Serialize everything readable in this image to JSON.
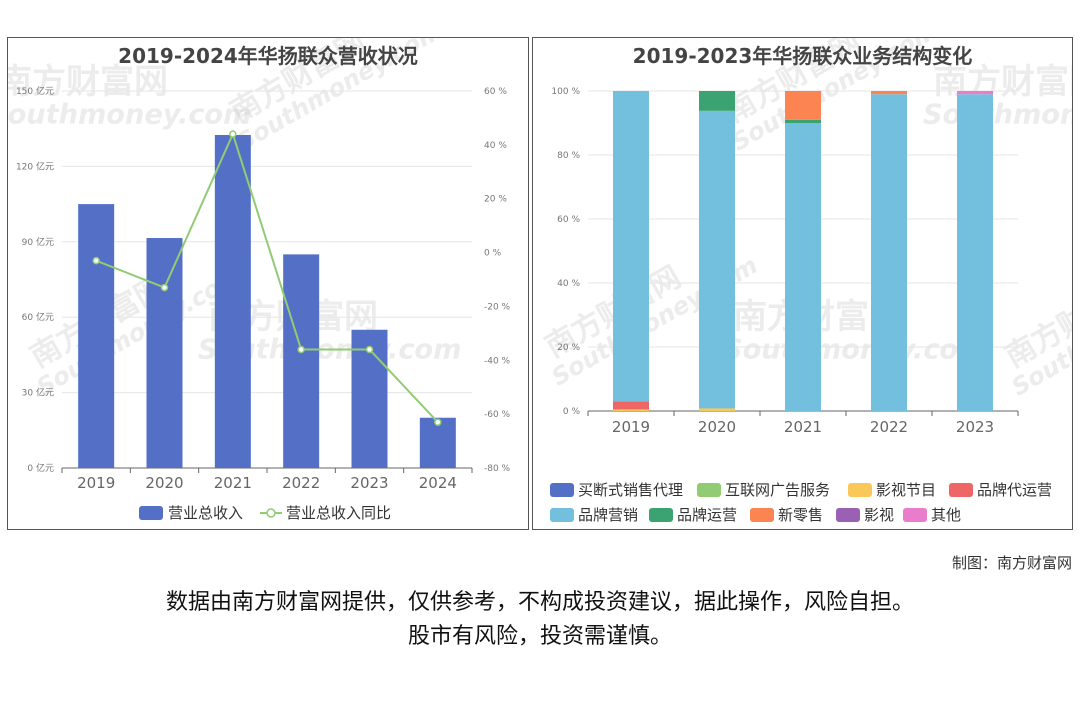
{
  "chart_data": [
    {
      "type": "bar",
      "title": "2019-2024年华扬联众营收状况",
      "categories": [
        "2019",
        "2020",
        "2021",
        "2022",
        "2023",
        "2024"
      ],
      "series": [
        {
          "name": "营业总收入",
          "type": "bar",
          "axis": "left",
          "values": [
            105,
            91.5,
            132.5,
            85,
            55,
            20
          ],
          "color": "#5470c6"
        },
        {
          "name": "营业总收入同比",
          "type": "line",
          "axis": "right",
          "values": [
            -3,
            -13,
            44,
            -36,
            -36,
            -63
          ],
          "color": "#91cc75"
        }
      ],
      "y_left": {
        "ticks": [
          "0 亿元",
          "30 亿元",
          "60 亿元",
          "90 亿元",
          "120 亿元",
          "150 亿元"
        ],
        "min": 0,
        "max": 150
      },
      "y_right": {
        "ticks": [
          "-80 %",
          "-60 %",
          "-40 %",
          "-20 %",
          "0 %",
          "20 %",
          "40 %",
          "60 %"
        ],
        "min": -80,
        "max": 60
      },
      "legend": "bottom"
    },
    {
      "type": "bar",
      "stacked": true,
      "title": "2019-2023年华扬联众业务结构变化",
      "categories": [
        "2019",
        "2020",
        "2021",
        "2022",
        "2023"
      ],
      "series": [
        {
          "name": "买断式销售代理",
          "color": "#5470c6",
          "values": [
            0,
            0,
            0,
            0,
            0
          ]
        },
        {
          "name": "互联网广告服务",
          "color": "#91cc75",
          "values": [
            0,
            0,
            0,
            0,
            0
          ]
        },
        {
          "name": "影视节目",
          "color": "#fac858",
          "values": [
            0.5,
            0.8,
            0,
            0,
            0
          ]
        },
        {
          "name": "品牌代运营",
          "color": "#ee6666",
          "values": [
            2.5,
            0,
            0,
            0,
            0
          ]
        },
        {
          "name": "品牌营销",
          "color": "#73c0de",
          "values": [
            97,
            93,
            90,
            99,
            99
          ]
        },
        {
          "name": "品牌运营",
          "color": "#3ba272",
          "values": [
            0,
            6.2,
            1,
            0,
            0
          ]
        },
        {
          "name": "新零售",
          "color": "#fc8452",
          "values": [
            0,
            0,
            9,
            1,
            0
          ]
        },
        {
          "name": "影视",
          "color": "#9a60b4",
          "values": [
            0,
            0,
            0,
            0,
            0
          ]
        },
        {
          "name": "其他",
          "color": "#ea7ccc",
          "values": [
            0,
            0,
            0,
            0,
            1
          ]
        }
      ],
      "y": {
        "ticks": [
          "0 %",
          "20 %",
          "40 %",
          "60 %",
          "80 %",
          "100 %"
        ],
        "min": 0,
        "max": 100
      },
      "legend": "bottom"
    }
  ],
  "footer": {
    "credit": "制图：南方财富网",
    "line1": "数据由南方财富网提供，仅供参考，不构成投资建议，据此操作，风险自担。",
    "line2": "股市有风险，投资需谨慎。"
  },
  "watermark": {
    "cn": "南方财富网",
    "en": "Southmoney.com"
  }
}
